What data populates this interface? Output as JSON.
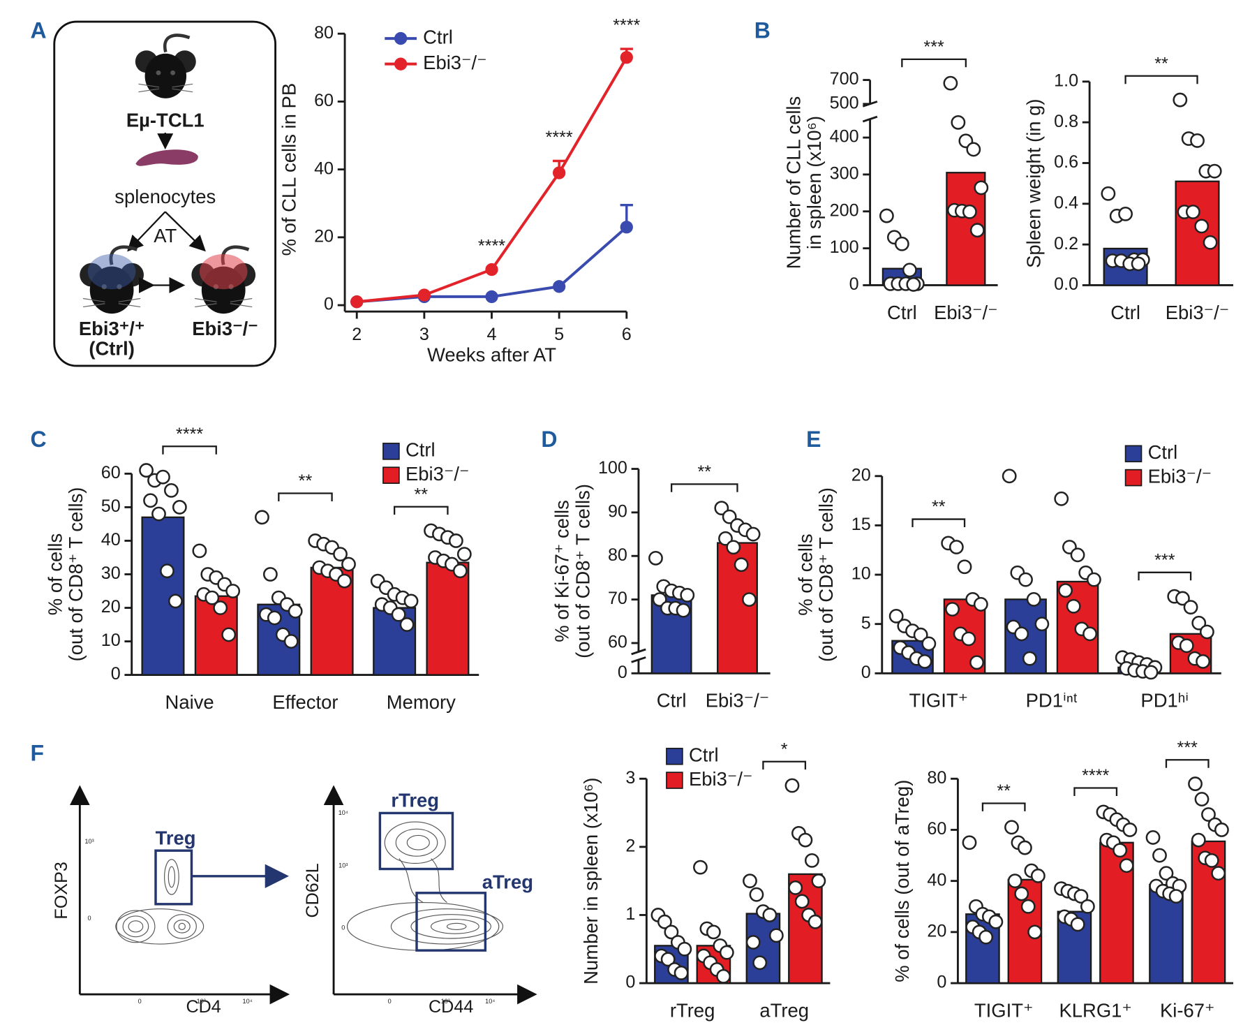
{
  "panels": [
    "A",
    "B",
    "C",
    "D",
    "E",
    "F"
  ],
  "schematic": {
    "strain": "Eµ-TCL1",
    "cells": "splenocytes",
    "transfer": "AT",
    "recipients": [
      {
        "label": "Ebi3⁺/⁺",
        "note": "(Ctrl)"
      },
      {
        "label": "Ebi3⁻/⁻"
      }
    ]
  },
  "flow": [
    {
      "ylabel": "FOXP3",
      "xlabel": "CD4",
      "gates": [
        "Treg"
      ],
      "xticks": [
        "0",
        "10³",
        "10⁴"
      ],
      "yticks": [
        "10³",
        "0"
      ]
    },
    {
      "ylabel": "CD62L",
      "xlabel": "CD44",
      "gates": [
        "rTreg",
        "aTreg"
      ],
      "xticks": [
        "0",
        "10³",
        "10⁴"
      ],
      "yticks": [
        "10⁴",
        "10³",
        "0"
      ]
    }
  ],
  "chart_data": [
    {
      "type": "line",
      "x": [
        2,
        3,
        4,
        5,
        6
      ],
      "xlim": [
        2,
        6
      ],
      "xticks": [
        2,
        3,
        4,
        5,
        6
      ],
      "ylim": [
        0,
        80
      ],
      "yticks": [
        0,
        20,
        40,
        60,
        80
      ],
      "xlabel": "Weeks after AT",
      "ylabel": "% of CLL cells in PB",
      "legend": "upper left",
      "series": [
        {
          "name": "Ctrl",
          "color": "#3a4bb0",
          "values": [
            1,
            2.5,
            2.5,
            5.5,
            23
          ],
          "errors": [
            null,
            null,
            null,
            null,
            6.5
          ]
        },
        {
          "name": "Ebi3⁻/⁻",
          "color": "#e3232a",
          "values": [
            1,
            3,
            10.5,
            39,
            73
          ],
          "errors": [
            null,
            null,
            null,
            3.5,
            2.5
          ]
        }
      ],
      "significance": [
        null,
        null,
        "****",
        "****",
        "****"
      ]
    },
    {
      "type": "bar",
      "categories": [
        "Ctrl",
        "Ebi3⁻/⁻"
      ],
      "colors": [
        "#2b3f98",
        "#e31d24"
      ],
      "values": [
        45,
        305
      ],
      "ylim": [
        0,
        700
      ],
      "ybreak": [
        450,
        500
      ],
      "yticks": [
        0,
        100,
        200,
        300,
        400,
        500,
        700
      ],
      "ylabel": [
        "Number of CLL cells",
        "in spleen (x10⁶)"
      ],
      "points": [
        [
          188,
          130,
          112,
          41,
          4,
          4,
          4,
          4,
          2
        ],
        [
          673,
          441,
          391,
          368,
          264,
          203,
          201,
          199,
          149
        ]
      ],
      "significance": "***"
    },
    {
      "type": "bar",
      "categories": [
        "Ctrl",
        "Ebi3⁻/⁻"
      ],
      "colors": [
        "#2b3f98",
        "#e31d24"
      ],
      "values": [
        0.18,
        0.51
      ],
      "ylim": [
        0,
        1
      ],
      "yticks": [
        {
          "value": 0,
          "label": "0.0"
        },
        0.2,
        0.4,
        0.6,
        0.8,
        {
          "value": 1,
          "label": "1.0"
        }
      ],
      "ylabel": "Spleen weight (in g)",
      "points": [
        [
          0.45,
          0.34,
          0.35,
          0.125,
          0.125,
          0.12,
          0.12,
          0.105,
          0.105
        ],
        [
          0.91,
          0.72,
          0.71,
          0.56,
          0.56,
          0.36,
          0.36,
          0.29,
          0.21
        ]
      ],
      "significance": "**"
    },
    {
      "type": "grouped_bar",
      "categories": [
        "Naive",
        "Effector",
        "Memory"
      ],
      "ylim": [
        0,
        60
      ],
      "yticks": [
        0,
        10,
        20,
        30,
        40,
        50,
        60
      ],
      "ylabel": [
        "% of cells",
        "(out of CD8⁺ T cells)"
      ],
      "legend": "upper right",
      "series": [
        {
          "name": "Ctrl",
          "color": "#2b3f98",
          "values": [
            47,
            21,
            20
          ],
          "points": [
            [
              61,
              58,
              59,
              55,
              50,
              52,
              48,
              31,
              22
            ],
            [
              47,
              30,
              23,
              21,
              19,
              18,
              17,
              12,
              10
            ],
            [
              28,
              26,
              24,
              23,
              22,
              21,
              20,
              18,
              15
            ]
          ]
        },
        {
          "name": "Ebi3⁻/⁻",
          "color": "#e31d24",
          "values": [
            23.5,
            32,
            33.5
          ],
          "points": [
            [
              37,
              30,
              29,
              27,
              25,
              24,
              23,
              20,
              12
            ],
            [
              40,
              39,
              38,
              36,
              33,
              32,
              31,
              30,
              28
            ],
            [
              43,
              42,
              41,
              40,
              36,
              35,
              34,
              33,
              31
            ]
          ]
        }
      ],
      "significance": [
        "****",
        "**",
        "**"
      ]
    },
    {
      "type": "bar",
      "categories": [
        "Ctrl",
        "Ebi3⁻/⁻"
      ],
      "colors": [
        "#2b3f98",
        "#e31d24"
      ],
      "values": [
        71,
        83
      ],
      "ylim": [
        0,
        100
      ],
      "ybreak": [
        5,
        58
      ],
      "yticks": [
        0,
        60,
        70,
        80,
        90,
        100
      ],
      "ylabel": [
        "% of Ki-67⁺ cells",
        "(out of CD8⁺ T cells)"
      ],
      "points": [
        [
          79.5,
          73,
          72,
          71.5,
          71,
          70,
          68,
          68,
          67.5
        ],
        [
          91,
          89,
          87,
          86,
          85,
          84,
          82,
          78,
          70
        ]
      ],
      "significance": "**"
    },
    {
      "type": "grouped_bar",
      "categories": [
        "TIGIT⁺",
        "PD1ⁱⁿᵗ",
        "PD1ʰⁱ"
      ],
      "ylim": [
        0,
        20
      ],
      "yticks": [
        0,
        5,
        10,
        15,
        20
      ],
      "ylabel": [
        "% of cells",
        "(out of CD8⁺ T cells)"
      ],
      "legend": "upper right",
      "series": [
        {
          "name": "Ctrl",
          "color": "#2b3f98",
          "values": [
            3.3,
            7.5,
            0.6
          ],
          "points": [
            [
              5.8,
              4.8,
              4.3,
              3.9,
              3,
              2.6,
              2.1,
              1.5,
              1.2
            ],
            [
              20,
              10.2,
              9.5,
              7.5,
              5,
              4.7,
              4,
              1.5
            ],
            [
              1.6,
              1.4,
              1.1,
              0.9,
              0.6,
              0.5,
              0.3,
              0.2,
              0.1
            ]
          ]
        },
        {
          "name": "Ebi3⁻/⁻",
          "color": "#e31d24",
          "values": [
            7.5,
            9.3,
            4
          ],
          "points": [
            [
              13.2,
              12.8,
              10.8,
              7.5,
              7,
              6.5,
              4,
              3.5,
              1.1
            ],
            [
              17.7,
              12.8,
              12,
              10.2,
              9.5,
              8.4,
              6.8,
              4.5,
              4
            ],
            [
              7.8,
              7.6,
              6.7,
              5.1,
              4.2,
              3.1,
              2.8,
              1.5,
              1.2
            ]
          ]
        }
      ],
      "significance": [
        "**",
        null,
        "***"
      ]
    },
    {
      "type": "grouped_bar",
      "categories": [
        "rTreg",
        "aTreg"
      ],
      "ylim": [
        0,
        3
      ],
      "yticks": [
        0,
        1,
        2,
        3
      ],
      "ylabel": "Number in spleen (x10⁶)",
      "legend": "upper left",
      "series": [
        {
          "name": "Ctrl",
          "color": "#2b3f98",
          "values": [
            0.55,
            1.02
          ],
          "points": [
            [
              1.0,
              0.9,
              0.75,
              0.6,
              0.5,
              0.4,
              0.35,
              0.2,
              0.15
            ],
            [
              1.5,
              1.3,
              1.05,
              1.0,
              0.7,
              0.6,
              0.3
            ]
          ]
        },
        {
          "name": "Ebi3⁻/⁻",
          "color": "#e31d24",
          "values": [
            0.55,
            1.6
          ],
          "points": [
            [
              1.7,
              0.8,
              0.75,
              0.55,
              0.45,
              0.4,
              0.3,
              0.2,
              0.1
            ],
            [
              2.9,
              2.2,
              2.1,
              1.8,
              1.5,
              1.4,
              1.2,
              1.0,
              0.9
            ]
          ]
        }
      ],
      "significance": [
        null,
        "*"
      ]
    },
    {
      "type": "grouped_bar",
      "categories": [
        "TIGIT⁺",
        "KLRG1⁺",
        "Ki-67⁺"
      ],
      "ylim": [
        0,
        80
      ],
      "yticks": [
        0,
        20,
        40,
        60,
        80
      ],
      "ylabel": "% of cells (out of aTreg)",
      "series": [
        {
          "name": "Ctrl",
          "color": "#2b3f98",
          "values": [
            27,
            28,
            38.5
          ],
          "points": [
            [
              55,
              30,
              27,
              26,
              24,
              22,
              20,
              18
            ],
            [
              37,
              36,
              35,
              34,
              30,
              26,
              25,
              23
            ],
            [
              57,
              50,
              43,
              39,
              38,
              38,
              36,
              35,
              34
            ]
          ]
        },
        {
          "name": "Ebi3⁻/⁻",
          "color": "#e31d24",
          "values": [
            40.5,
            55,
            55.5
          ],
          "points": [
            [
              61,
              55,
              53,
              44,
              42,
              40,
              35,
              30,
              20
            ],
            [
              67,
              66,
              64,
              62,
              60,
              56,
              55,
              52,
              46
            ],
            [
              78,
              72,
              66,
              62,
              60,
              56,
              49,
              48,
              43
            ]
          ]
        }
      ],
      "significance": [
        "**",
        "****",
        "***"
      ]
    }
  ]
}
